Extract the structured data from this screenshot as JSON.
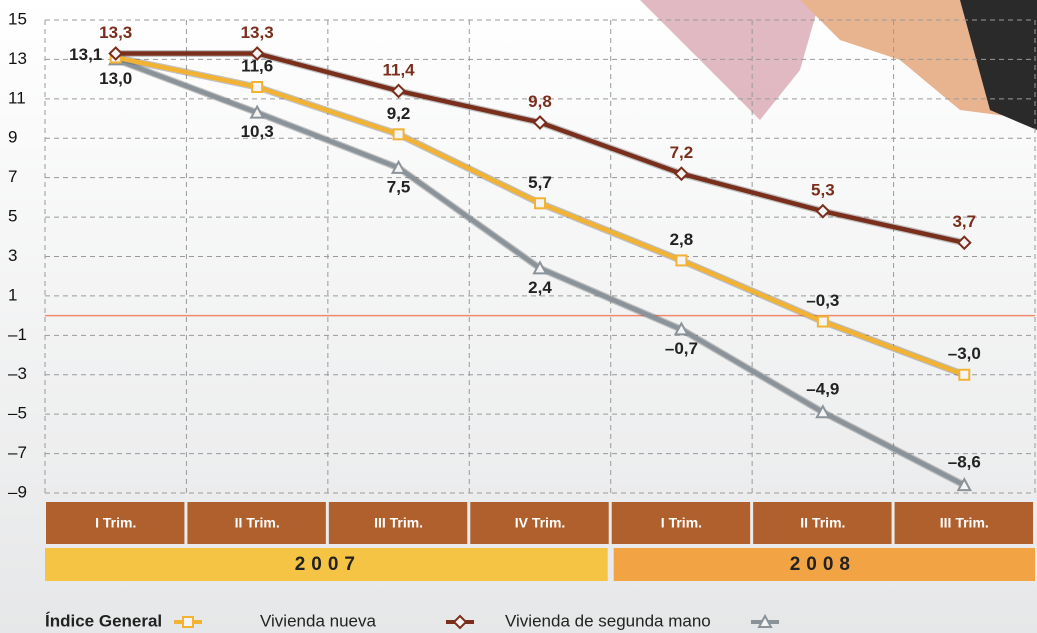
{
  "chart_data": {
    "type": "line",
    "categories": [
      "I Trim.",
      "II Trim.",
      "III Trim.",
      "IV Trim.",
      "I Trim.",
      "II Trim.",
      "III Trim."
    ],
    "groups": [
      {
        "label": "2007",
        "size": 4,
        "color": "#f6c445"
      },
      {
        "label": "2008",
        "size": 3,
        "color": "#f2a444"
      }
    ],
    "series": [
      {
        "name": "Índice General",
        "color": "#f2b233",
        "marker": "square",
        "values": [
          13.1,
          11.6,
          9.2,
          5.7,
          2.8,
          -0.3,
          -3.0
        ],
        "value_labels": [
          "13,1",
          "11,6",
          "9,2",
          "5,7",
          "2,8",
          "–0,3",
          "–3,0"
        ],
        "label_color": "#222222"
      },
      {
        "name": "Vivienda nueva",
        "color": "#7a2e1c",
        "marker": "diamond",
        "values": [
          13.3,
          13.3,
          11.4,
          9.8,
          7.2,
          5.3,
          3.7
        ],
        "value_labels": [
          "13,3",
          "13,3",
          "11,4",
          "9,8",
          "7,2",
          "5,3",
          "3,7"
        ],
        "label_color": "#7a2e1c"
      },
      {
        "name": "Vivienda de segunda mano",
        "color": "#8a929a",
        "marker": "triangle",
        "values": [
          13.0,
          10.3,
          7.5,
          2.4,
          -0.7,
          -4.9,
          -8.6
        ],
        "value_labels": [
          "13,0",
          "10,3",
          "7,5",
          "2,4",
          "–0,7",
          "–4,9",
          "–8,6"
        ],
        "label_color": "#222222"
      }
    ],
    "ylim": [
      -9,
      15
    ],
    "yticks": [
      15,
      13,
      11,
      9,
      7,
      5,
      3,
      1,
      {
        "value": -1,
        "label": "–1"
      },
      {
        "value": -3,
        "label": "–3"
      },
      {
        "value": -5,
        "label": "–5"
      },
      {
        "value": -7,
        "label": "–7"
      },
      {
        "value": -9,
        "label": "–9"
      }
    ],
    "grid": true,
    "zero_line_color": "#f08a6a",
    "category_band_color": "#b0602d"
  }
}
